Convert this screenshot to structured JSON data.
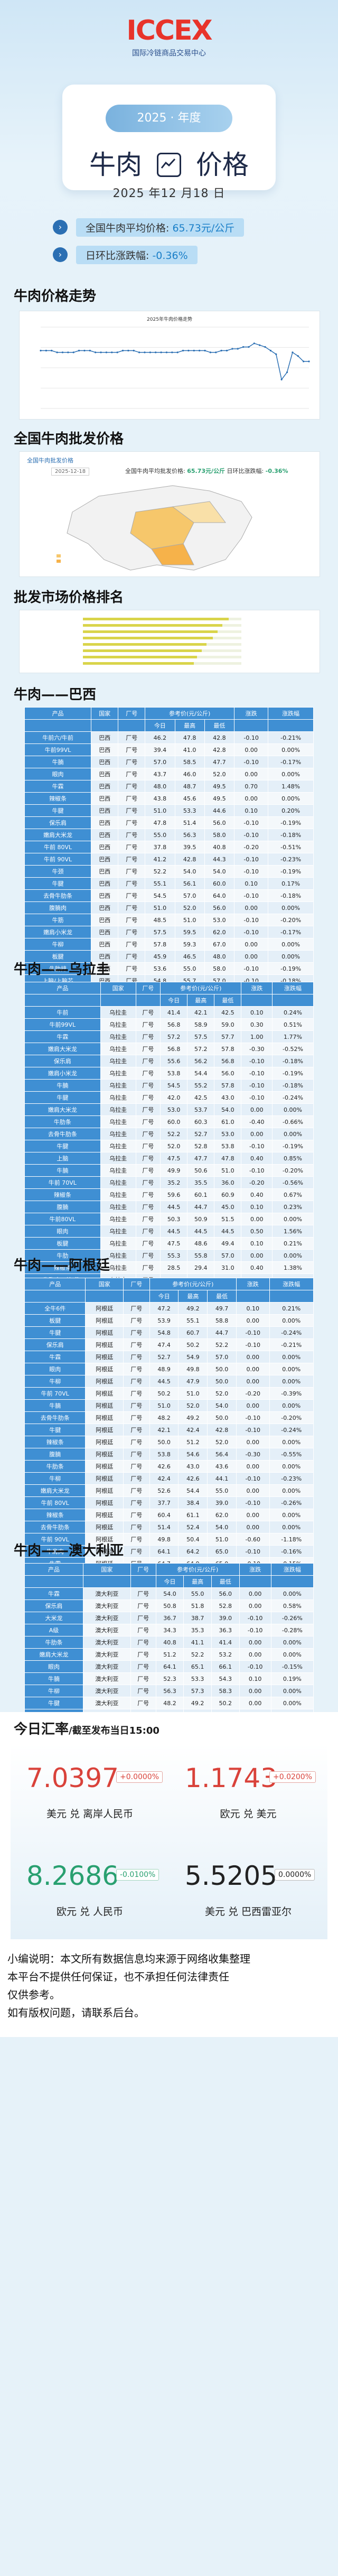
{
  "brand": {
    "logo": "ICCEX",
    "name": "国际冷链商品交易中心"
  },
  "header": {
    "year_label": "2025 · 年度",
    "title_left": "牛肉",
    "title_right": "价格",
    "date": "2025 年12 月18 日",
    "avg_label": "全国牛肉平均价格: ",
    "avg_value": "65.73元/公斤",
    "chg_label": "日环比涨跌幅: ",
    "chg_value": "-0.36%"
  },
  "sections": {
    "trend": "牛肉价格走势",
    "wholesale": "全国牛肉批发价格",
    "ranking": "批发市场价格排名",
    "brazil": "牛肉——巴西",
    "uruguay": "牛肉——乌拉圭",
    "argentina": "牛肉——阿根廷",
    "australia": "牛肉——澳大利亚",
    "fx": "今日汇率",
    "fx_note": "/截至发布当日15:00"
  },
  "chart_data": {
    "type": "line",
    "title": "2025年牛肉价格走势",
    "x": [
      "01",
      "02",
      "03",
      "04",
      "05",
      "06",
      "07",
      "08",
      "09",
      "10",
      "11",
      "12",
      "13",
      "14",
      "15",
      "16",
      "17",
      "18",
      "19",
      "20",
      "21",
      "22",
      "23",
      "24",
      "25",
      "26",
      "27",
      "28",
      "29",
      "30",
      "31",
      "32",
      "33",
      "34",
      "35",
      "36",
      "37",
      "38",
      "39",
      "40",
      "41",
      "42",
      "43",
      "44",
      "45",
      "46",
      "47",
      "48",
      "49",
      "50"
    ],
    "values": [
      72,
      72,
      72,
      71,
      71,
      71,
      71,
      72,
      72,
      72,
      71,
      71,
      71,
      71,
      71,
      72,
      72,
      72,
      71,
      71,
      71,
      71,
      71,
      71,
      71,
      71,
      72,
      72,
      72,
      72,
      72,
      71,
      71,
      72,
      72,
      73,
      73,
      74,
      74,
      76,
      75,
      74,
      72,
      70,
      56,
      60,
      71,
      69,
      66,
      66
    ],
    "ylim": [
      40,
      85
    ]
  },
  "wholesale_card": {
    "title": "全国牛肉批发价格",
    "date": "2025-12-18",
    "avg_label": "全国牛肉平均批发价格:",
    "avg_value": "65.73元/公斤",
    "chg_label": "日环比涨跌幅:",
    "chg_value": "-0.36%"
  },
  "table_headers": [
    "产品",
    "国家",
    "厂号",
    "参考价(元/公斤)",
    "",
    "",
    "涨跌",
    "涨跌幅"
  ],
  "table_subheaders": [
    "",
    "",
    "",
    "今日",
    "最高",
    "最低",
    "",
    ""
  ],
  "brazil": [
    [
      "牛前六/牛前",
      "巴西",
      "厂号",
      "46.2",
      "47.8",
      "42.8",
      "-0.10",
      "-0.21%"
    ],
    [
      "牛前99VL",
      "巴西",
      "厂号",
      "39.4",
      "41.0",
      "42.8",
      "0.00",
      "0.00%"
    ],
    [
      "牛腩",
      "巴西",
      "厂号",
      "57.0",
      "58.5",
      "47.7",
      "-0.10",
      "-0.17%"
    ],
    [
      "眼肉",
      "巴西",
      "厂号",
      "43.7",
      "46.0",
      "52.0",
      "0.00",
      "0.00%"
    ],
    [
      "牛霖",
      "巴西",
      "厂号",
      "48.0",
      "48.7",
      "49.5",
      "0.70",
      "1.48%"
    ],
    [
      "辣椒条",
      "巴西",
      "厂号",
      "43.8",
      "45.6",
      "49.5",
      "0.00",
      "0.00%"
    ],
    [
      "牛腱",
      "巴西",
      "厂号",
      "51.0",
      "53.3",
      "44.6",
      "0.10",
      "0.20%"
    ],
    [
      "保乐肩",
      "巴西",
      "厂号",
      "47.8",
      "51.4",
      "56.0",
      "-0.10",
      "-0.19%"
    ],
    [
      "嫩肩大米龙",
      "巴西",
      "厂号",
      "55.0",
      "56.3",
      "58.0",
      "-0.10",
      "-0.18%"
    ],
    [
      "牛前 80VL",
      "巴西",
      "厂号",
      "37.8",
      "39.5",
      "40.8",
      "-0.20",
      "-0.51%"
    ],
    [
      "牛前 90VL",
      "巴西",
      "厂号",
      "41.2",
      "42.8",
      "44.3",
      "-0.10",
      "-0.23%"
    ],
    [
      "牛颈",
      "巴西",
      "厂号",
      "52.2",
      "54.0",
      "54.0",
      "-0.10",
      "-0.19%"
    ],
    [
      "牛腱",
      "巴西",
      "厂号",
      "55.1",
      "56.1",
      "60.0",
      "0.10",
      "0.17%"
    ],
    [
      "去骨牛肋条",
      "巴西",
      "厂号",
      "54.5",
      "57.0",
      "64.0",
      "-0.10",
      "-0.18%"
    ],
    [
      "腹腩肉",
      "巴西",
      "厂号",
      "51.0",
      "52.0",
      "56.0",
      "0.00",
      "0.00%"
    ],
    [
      "牛筋",
      "巴西",
      "厂号",
      "48.5",
      "51.0",
      "53.0",
      "-0.10",
      "-0.20%"
    ],
    [
      "嫩肩小米龙",
      "巴西",
      "厂号",
      "57.5",
      "59.5",
      "62.0",
      "-0.10",
      "-0.17%"
    ],
    [
      "牛柳",
      "巴西",
      "厂号",
      "57.8",
      "59.3",
      "67.0",
      "0.00",
      "0.00%"
    ],
    [
      "板腱",
      "巴西",
      "厂号",
      "45.9",
      "46.5",
      "48.0",
      "0.00",
      "0.00%"
    ],
    [
      "牛肋排",
      "巴西",
      "厂号",
      "53.6",
      "55.0",
      "58.0",
      "-0.10",
      "-0.19%"
    ],
    [
      "上脑/上脑芯",
      "巴西",
      "厂号",
      "54.8",
      "55.7",
      "57.0",
      "-0.10",
      "-0.18%"
    ]
  ],
  "uruguay": [
    [
      "牛前",
      "乌拉圭",
      "厂号",
      "41.4",
      "42.1",
      "42.5",
      "0.10",
      "0.24%"
    ],
    [
      "牛前99VL",
      "乌拉圭",
      "厂号",
      "56.8",
      "58.9",
      "59.0",
      "0.30",
      "0.51%"
    ],
    [
      "牛霖",
      "乌拉圭",
      "厂号",
      "57.2",
      "57.5",
      "57.7",
      "1.00",
      "1.77%"
    ],
    [
      "嫩肩大米龙",
      "乌拉圭",
      "厂号",
      "56.8",
      "57.2",
      "57.8",
      "-0.30",
      "-0.52%"
    ],
    [
      "保乐肩",
      "乌拉圭",
      "厂号",
      "55.6",
      "56.2",
      "56.8",
      "-0.10",
      "-0.18%"
    ],
    [
      "嫩肩小米龙",
      "乌拉圭",
      "厂号",
      "53.8",
      "54.4",
      "56.0",
      "-0.10",
      "-0.19%"
    ],
    [
      "牛腩",
      "乌拉圭",
      "厂号",
      "54.5",
      "55.2",
      "57.8",
      "-0.10",
      "-0.18%"
    ],
    [
      "牛腱",
      "乌拉圭",
      "厂号",
      "42.0",
      "42.5",
      "43.0",
      "-0.10",
      "-0.24%"
    ],
    [
      "嫩肩大米龙",
      "乌拉圭",
      "厂号",
      "53.0",
      "53.7",
      "54.0",
      "0.00",
      "0.00%"
    ],
    [
      "牛肋条",
      "乌拉圭",
      "厂号",
      "60.0",
      "60.3",
      "61.0",
      "-0.40",
      "-0.66%"
    ],
    [
      "去骨牛肋条",
      "乌拉圭",
      "厂号",
      "52.2",
      "52.7",
      "53.0",
      "0.00",
      "0.00%"
    ],
    [
      "牛腱",
      "乌拉圭",
      "厂号",
      "52.0",
      "52.8",
      "53.8",
      "-0.10",
      "-0.19%"
    ],
    [
      "上脑",
      "乌拉圭",
      "厂号",
      "47.5",
      "47.7",
      "47.8",
      "0.40",
      "0.85%"
    ],
    [
      "牛腩",
      "乌拉圭",
      "厂号",
      "49.9",
      "50.6",
      "51.0",
      "-0.10",
      "-0.20%"
    ],
    [
      "牛前 70VL",
      "乌拉圭",
      "厂号",
      "35.2",
      "35.5",
      "36.0",
      "-0.20",
      "-0.56%"
    ],
    [
      "辣椒条",
      "乌拉圭",
      "厂号",
      "59.6",
      "60.1",
      "60.9",
      "0.40",
      "0.67%"
    ],
    [
      "腹腩",
      "乌拉圭",
      "厂号",
      "44.5",
      "44.7",
      "45.0",
      "0.10",
      "0.23%"
    ],
    [
      "牛前80VL",
      "乌拉圭",
      "厂号",
      "50.3",
      "50.9",
      "51.5",
      "0.00",
      "0.00%"
    ],
    [
      "眼肉",
      "乌拉圭",
      "厂号",
      "44.5",
      "44.5",
      "44.5",
      "0.50",
      "1.56%"
    ],
    [
      "板腱",
      "乌拉圭",
      "厂号",
      "47.5",
      "48.6",
      "49.4",
      "0.10",
      "0.21%"
    ],
    [
      "牛肋",
      "乌拉圭",
      "厂号",
      "55.3",
      "55.8",
      "57.0",
      "0.00",
      "0.00%"
    ],
    [
      "辣椒条",
      "乌拉圭",
      "厂号",
      "28.5",
      "29.4",
      "31.0",
      "0.40",
      "1.38%"
    ],
    [
      "牛胸肉(3块/件)",
      "乌拉圭",
      "厂号",
      "53.2",
      "54.1",
      "54.5",
      "-0.10",
      "-0.18%"
    ]
  ],
  "argentina": [
    [
      "全牛6件",
      "阿根廷",
      "厂号",
      "47.2",
      "49.2",
      "49.7",
      "0.10",
      "0.21%"
    ],
    [
      "板腱",
      "阿根廷",
      "厂号",
      "53.9",
      "55.1",
      "58.8",
      "0.00",
      "0.00%"
    ],
    [
      "牛腱",
      "阿根廷",
      "厂号",
      "54.8",
      "60.7",
      "44.7",
      "-0.10",
      "-0.24%"
    ],
    [
      "保乐肩",
      "阿根廷",
      "厂号",
      "47.4",
      "50.2",
      "52.2",
      "-0.10",
      "-0.21%"
    ],
    [
      "牛霖",
      "阿根廷",
      "厂号",
      "52.7",
      "54.9",
      "57.0",
      "0.00",
      "0.00%"
    ],
    [
      "眼肉",
      "阿根廷",
      "厂号",
      "48.9",
      "49.8",
      "50.0",
      "0.00",
      "0.00%"
    ],
    [
      "牛柳",
      "阿根廷",
      "厂号",
      "44.5",
      "47.9",
      "50.0",
      "0.00",
      "0.00%"
    ],
    [
      "牛前 70VL",
      "阿根廷",
      "厂号",
      "50.2",
      "51.0",
      "52.0",
      "-0.20",
      "-0.39%"
    ],
    [
      "牛腩",
      "阿根廷",
      "厂号",
      "51.0",
      "52.0",
      "54.0",
      "0.00",
      "0.00%"
    ],
    [
      "去骨牛肋条",
      "阿根廷",
      "厂号",
      "48.2",
      "49.2",
      "50.0",
      "-0.10",
      "-0.20%"
    ],
    [
      "牛腱",
      "阿根廷",
      "厂号",
      "42.1",
      "42.4",
      "42.8",
      "-0.10",
      "-0.24%"
    ],
    [
      "辣椒条",
      "阿根廷",
      "厂号",
      "50.0",
      "51.2",
      "52.0",
      "0.00",
      "0.00%"
    ],
    [
      "腹腩",
      "阿根廷",
      "厂号",
      "53.8",
      "54.6",
      "56.4",
      "-0.30",
      "-0.55%"
    ],
    [
      "牛肋条",
      "阿根廷",
      "厂号",
      "42.6",
      "43.0",
      "43.6",
      "0.00",
      "0.00%"
    ],
    [
      "牛柳",
      "阿根廷",
      "厂号",
      "42.4",
      "42.6",
      "44.1",
      "-0.10",
      "-0.23%"
    ],
    [
      "嫩肩大米龙",
      "阿根廷",
      "厂号",
      "52.6",
      "54.4",
      "55.0",
      "0.00",
      "0.00%"
    ],
    [
      "牛前 80VL",
      "阿根廷",
      "厂号",
      "37.7",
      "38.4",
      "39.0",
      "-0.10",
      "-0.26%"
    ],
    [
      "辣椒条",
      "阿根廷",
      "厂号",
      "60.4",
      "61.1",
      "62.0",
      "0.00",
      "0.00%"
    ],
    [
      "去骨牛肋条",
      "阿根廷",
      "厂号",
      "51.4",
      "52.4",
      "54.0",
      "0.00",
      "0.00%"
    ],
    [
      "牛前 90VL",
      "阿根廷",
      "厂号",
      "49.8",
      "50.4",
      "51.0",
      "-0.60",
      "-1.18%"
    ],
    [
      "牛肩肉",
      "阿根廷",
      "厂号",
      "64.1",
      "64.2",
      "65.0",
      "-0.10",
      "-0.16%"
    ],
    [
      "牛霖",
      "阿根廷",
      "厂号",
      "64.7",
      "64.9",
      "65.0",
      "-0.10",
      "-0.15%"
    ]
  ],
  "australia": [
    [
      "牛霖",
      "澳大利亚",
      "厂号",
      "54.0",
      "55.0",
      "56.0",
      "0.00",
      "0.00%"
    ],
    [
      "保乐肩",
      "澳大利亚",
      "厂号",
      "50.8",
      "51.8",
      "52.8",
      "0.00",
      "0.58%"
    ],
    [
      "大米龙",
      "澳大利亚",
      "厂号",
      "36.7",
      "38.7",
      "39.0",
      "-0.10",
      "-0.26%"
    ],
    [
      "A级",
      "澳大利亚",
      "厂号",
      "34.3",
      "35.3",
      "36.3",
      "-0.10",
      "-0.28%"
    ],
    [
      "牛肋条",
      "澳大利亚",
      "厂号",
      "40.8",
      "41.1",
      "41.4",
      "0.00",
      "0.00%"
    ],
    [
      "嫩肩大米龙",
      "澳大利亚",
      "厂号",
      "51.2",
      "52.2",
      "53.2",
      "0.00",
      "0.00%"
    ],
    [
      "眼肉",
      "澳大利亚",
      "厂号",
      "64.1",
      "65.1",
      "66.1",
      "-0.10",
      "-0.15%"
    ],
    [
      "牛腩",
      "澳大利亚",
      "厂号",
      "52.3",
      "53.3",
      "54.3",
      "0.10",
      "0.19%"
    ],
    [
      "牛柳",
      "澳大利亚",
      "厂号",
      "56.3",
      "57.3",
      "58.3",
      "0.00",
      "0.00%"
    ],
    [
      "牛腱",
      "澳大利亚",
      "厂号",
      "48.2",
      "49.2",
      "50.2",
      "0.00",
      "0.00%"
    ],
    [
      "牛颈",
      "澳大利亚",
      "厂号",
      "54.4",
      "54.7",
      "55.0",
      "0.00",
      "0.00%"
    ],
    [
      "去骨牛肋条",
      "澳大利亚",
      "厂号",
      "50.3",
      "51.0",
      "52.0",
      "0.00",
      "0.00%"
    ]
  ],
  "fx": [
    {
      "value": "7.0397",
      "change": "+0.0000%",
      "label": "美元 兑 离岸人民币",
      "color": "#d9423a"
    },
    {
      "value": "1.1743",
      "change": "+0.0200%",
      "label": "欧元 兑 美元",
      "color": "#d9423a"
    },
    {
      "value": "8.2686",
      "change": "-0.0100%",
      "label": "欧元 兑 人民币",
      "color": "#29a070"
    },
    {
      "value": "5.5205",
      "change": "0.0000%",
      "label": "美元 兑 巴西雷亚尔",
      "color": "#222222"
    }
  ],
  "note": {
    "line1": "小编说明：本文所有数据信息均来源于网络收集整理",
    "line2": "本平台不提供任何保证，也不承担任何法律责任",
    "line3": "仅供参考。",
    "line4": "如有版权问题，请联系后台。"
  }
}
